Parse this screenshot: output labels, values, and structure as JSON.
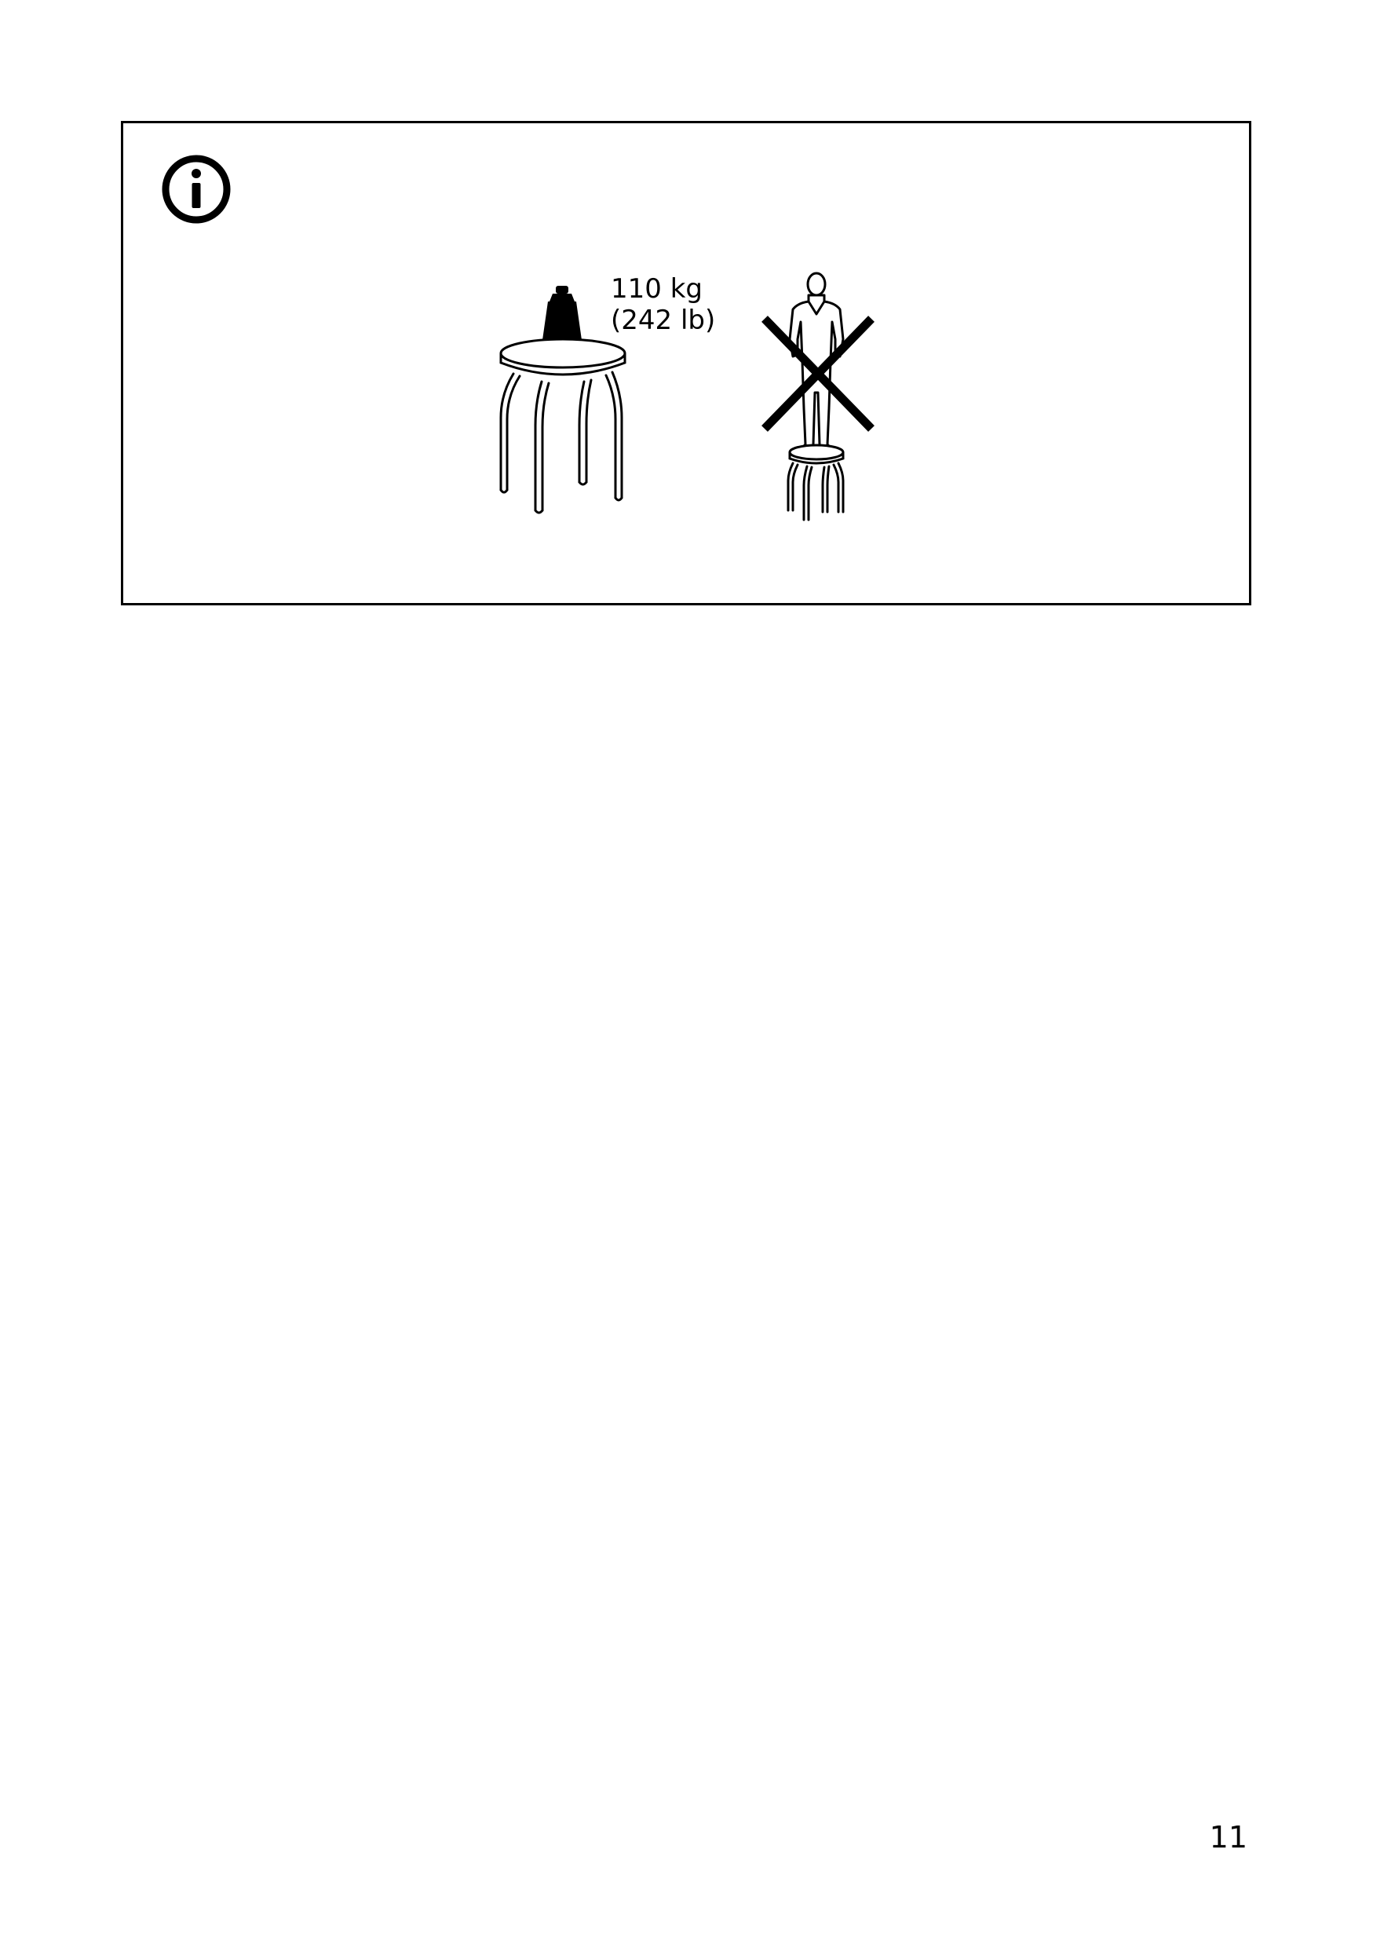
{
  "info_panel": {
    "icon": "info-icon",
    "weight_label": {
      "metric": "110 kg",
      "imperial": "(242 lb)"
    },
    "illustrations": [
      "stool-with-weight-illustration",
      "person-standing-on-stool-prohibited-illustration"
    ]
  },
  "page_number": "11",
  "colors": {
    "ink": "#000000",
    "paper": "#ffffff"
  }
}
